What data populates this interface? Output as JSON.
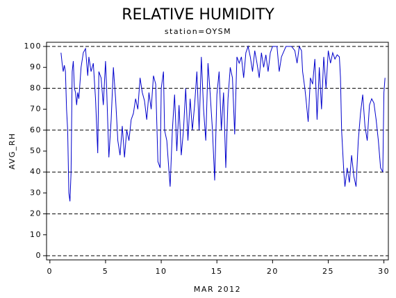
{
  "chart_data": {
    "type": "line",
    "title": "RELATIVE HUMIDITY",
    "subtitle": "station=OYSM",
    "ylabel": "AVG_RH",
    "xlabel": "MAR 2012",
    "xlim": [
      -0.3,
      30.4
    ],
    "ylim": [
      -2,
      102
    ],
    "xticks": [
      0,
      5,
      10,
      15,
      20,
      25,
      30
    ],
    "yticks": [
      0,
      10,
      20,
      30,
      40,
      50,
      60,
      70,
      80,
      90,
      100
    ],
    "ygrid": [
      0,
      20,
      40,
      60,
      80,
      100
    ],
    "series": [
      {
        "color": "#0000cc",
        "x": [
          1.0,
          1.1,
          1.2,
          1.3,
          1.4,
          1.5,
          1.6,
          1.7,
          1.8,
          1.9,
          2.0,
          2.1,
          2.2,
          2.3,
          2.4,
          2.5,
          2.6,
          2.8,
          3.0,
          3.2,
          3.4,
          3.5,
          3.7,
          3.9,
          4.1,
          4.3,
          4.4,
          4.6,
          4.8,
          5.0,
          5.1,
          5.3,
          5.5,
          5.7,
          5.9,
          6.1,
          6.3,
          6.5,
          6.7,
          6.9,
          7.1,
          7.3,
          7.5,
          7.7,
          7.9,
          8.1,
          8.3,
          8.5,
          8.7,
          8.9,
          9.1,
          9.3,
          9.5,
          9.7,
          9.9,
          10.0,
          10.2,
          10.3,
          10.5,
          10.7,
          10.8,
          11.0,
          11.2,
          11.4,
          11.6,
          11.8,
          12.0,
          12.2,
          12.4,
          12.6,
          12.8,
          13.0,
          13.2,
          13.4,
          13.6,
          13.8,
          14.0,
          14.2,
          14.4,
          14.6,
          14.8,
          15.0,
          15.2,
          15.4,
          15.6,
          15.8,
          16.0,
          16.2,
          16.4,
          16.6,
          16.8,
          17.0,
          17.2,
          17.4,
          17.6,
          17.8,
          18.0,
          18.2,
          18.4,
          18.6,
          18.8,
          19.0,
          19.2,
          19.4,
          19.6,
          19.8,
          20.0,
          20.4,
          20.6,
          20.8,
          21.2,
          21.5,
          21.7,
          22.0,
          22.2,
          22.4,
          22.6,
          22.7,
          22.9,
          23.0,
          23.2,
          23.4,
          23.6,
          23.8,
          24.0,
          24.2,
          24.4,
          24.6,
          24.8,
          25.0,
          25.2,
          25.4,
          25.6,
          25.8,
          26.0,
          26.1,
          26.2,
          26.4,
          26.5,
          26.7,
          26.9,
          27.1,
          27.3,
          27.5,
          27.7,
          27.9,
          28.1,
          28.3,
          28.5,
          28.7,
          28.9,
          29.1,
          29.3,
          29.5,
          29.7,
          29.9,
          30.0,
          30.1
        ],
        "values": [
          97,
          92,
          88,
          91,
          88,
          70,
          60,
          30,
          26,
          40,
          88,
          93,
          80,
          78,
          72,
          78,
          75,
          90,
          97,
          99,
          86,
          95,
          88,
          92,
          75,
          49,
          88,
          85,
          72,
          93,
          80,
          47,
          65,
          90,
          75,
          55,
          48,
          62,
          47,
          60,
          55,
          65,
          68,
          75,
          70,
          85,
          78,
          74,
          65,
          78,
          70,
          86,
          82,
          45,
          42,
          80,
          88,
          60,
          55,
          40,
          33,
          60,
          77,
          50,
          72,
          48,
          60,
          80,
          55,
          75,
          60,
          72,
          88,
          60,
          95,
          70,
          55,
          92,
          77,
          60,
          36,
          77,
          88,
          60,
          78,
          42,
          75,
          90,
          85,
          58,
          95,
          92,
          95,
          85,
          97,
          100,
          95,
          88,
          98,
          92,
          85,
          97,
          90,
          96,
          88,
          97,
          100,
          100,
          88,
          95,
          100,
          100,
          100,
          98,
          92,
          100,
          98,
          88,
          80,
          75,
          64,
          85,
          82,
          94,
          65,
          90,
          70,
          95,
          80,
          98,
          92,
          97,
          94,
          96,
          95,
          85,
          60,
          40,
          33,
          42,
          35,
          48,
          38,
          33,
          55,
          68,
          77,
          62,
          55,
          72,
          75,
          73,
          65,
          55,
          42,
          40,
          78,
          85
        ]
      }
    ]
  }
}
